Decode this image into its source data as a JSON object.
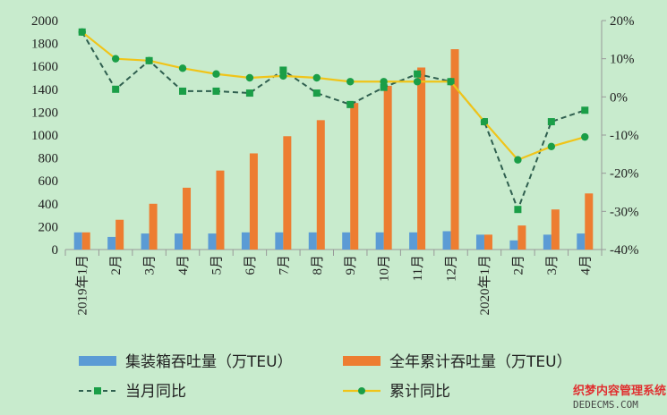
{
  "chart_data": {
    "type": "bar",
    "categories": [
      "2019年1月",
      "2月",
      "3月",
      "4月",
      "5月",
      "6月",
      "7月",
      "8月",
      "9月",
      "10月",
      "11月",
      "12月",
      "2020年1月",
      "2月",
      "3月",
      "4月"
    ],
    "series": [
      {
        "name": "集装箱吞吐量（万TEU）",
        "type": "bar",
        "axis": "left",
        "color": "#5b9bd5",
        "values": [
          150,
          110,
          140,
          140,
          140,
          150,
          150,
          150,
          150,
          150,
          150,
          160,
          130,
          80,
          130,
          140
        ]
      },
      {
        "name": "全年累计吞吐量（万TEU）",
        "type": "bar",
        "axis": "left",
        "color": "#ed7d31",
        "values": [
          150,
          260,
          400,
          540,
          690,
          840,
          990,
          1130,
          1280,
          1430,
          1590,
          1750,
          130,
          210,
          350,
          490
        ]
      },
      {
        "name": "当月同比",
        "type": "line",
        "axis": "right",
        "color": "#1a9e47",
        "dash": true,
        "values": [
          17,
          2,
          9.5,
          1.5,
          1.5,
          1,
          7,
          1,
          -2,
          2.5,
          6,
          4,
          -6.5,
          -29.5,
          -6.5,
          -3.5
        ]
      },
      {
        "name": "累计同比",
        "type": "line",
        "axis": "right",
        "color": "#f0c419",
        "dash": false,
        "values": [
          17,
          10,
          9.5,
          7.5,
          6,
          5,
          5.5,
          5,
          4,
          4,
          4,
          4,
          -6.5,
          -16.5,
          -13,
          -10.5
        ]
      }
    ],
    "ylim": [
      0,
      2000
    ],
    "yticks": [
      "0",
      "200",
      "400",
      "600",
      "800",
      "1000",
      "1200",
      "1400",
      "1600",
      "1800",
      "2000"
    ],
    "y2lim": [
      -40,
      20
    ],
    "y2ticks": [
      "-40%",
      "-30%",
      "-20%",
      "-10%",
      "0%",
      "10%",
      "20%"
    ],
    "grid": false,
    "legend_position": "bottom"
  },
  "watermark": {
    "line1": "织梦内容管理系统",
    "line2": "DEDECMS.COM"
  }
}
